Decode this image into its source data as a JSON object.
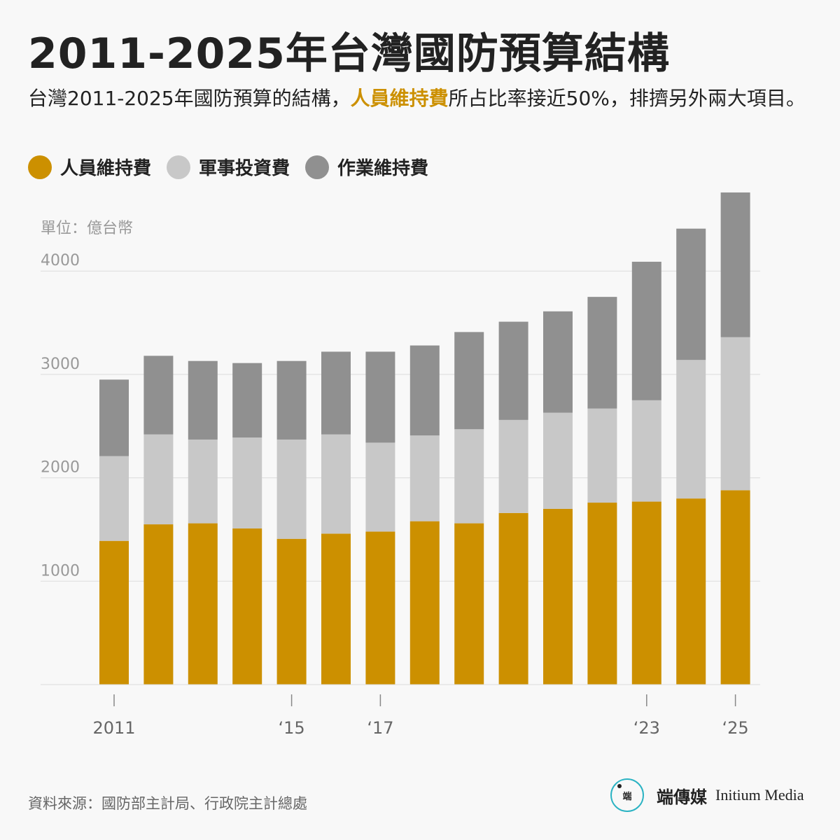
{
  "title": "2011-2025年台灣國防預算結構",
  "subtitle": {
    "before": "台灣2011-2025年國防預算的結構，",
    "highlight": "人員維持費",
    "after": "所占比率接近50%，排擠另外兩大項目。"
  },
  "legend": [
    {
      "label": "人員維持費",
      "color": "#cc9000"
    },
    {
      "label": "軍事投資費",
      "color": "#c8c8c8"
    },
    {
      "label": "作業維持費",
      "color": "#909090"
    }
  ],
  "source": "資料來源：國防部主計局、行政院主計總處",
  "logo": {
    "mark_text": "端",
    "name_zh": "端傳媒",
    "name_en": "Initium Media"
  },
  "chart_data": {
    "type": "bar",
    "stacked": true,
    "unit_label": "單位：億台幣",
    "categories": [
      "2011",
      "2012",
      "2013",
      "2014",
      "2015",
      "2016",
      "2017",
      "2018",
      "2019",
      "2020",
      "2021",
      "2022",
      "2023",
      "2024",
      "2025"
    ],
    "x_tick_labels": [
      {
        "index": 0,
        "label": "2011"
      },
      {
        "index": 4,
        "label": "‘15"
      },
      {
        "index": 6,
        "label": "‘17"
      },
      {
        "index": 12,
        "label": "‘23"
      },
      {
        "index": 14,
        "label": "‘25"
      }
    ],
    "y_ticks": [
      1000,
      2000,
      3000,
      4000
    ],
    "ylim": [
      0,
      4800
    ],
    "grid": true,
    "series": [
      {
        "name": "人員維持費",
        "color": "#cc9000",
        "values": [
          1390,
          1550,
          1560,
          1510,
          1410,
          1460,
          1480,
          1580,
          1560,
          1660,
          1700,
          1760,
          1770,
          1800,
          1880
        ]
      },
      {
        "name": "軍事投資費",
        "color": "#c8c8c8",
        "values": [
          820,
          870,
          810,
          880,
          960,
          960,
          860,
          830,
          910,
          900,
          930,
          910,
          980,
          1340,
          1480
        ]
      },
      {
        "name": "作業維持費",
        "color": "#909090",
        "values": [
          740,
          760,
          760,
          720,
          760,
          800,
          880,
          870,
          940,
          950,
          980,
          1080,
          1340,
          1270,
          1400
        ]
      }
    ]
  }
}
